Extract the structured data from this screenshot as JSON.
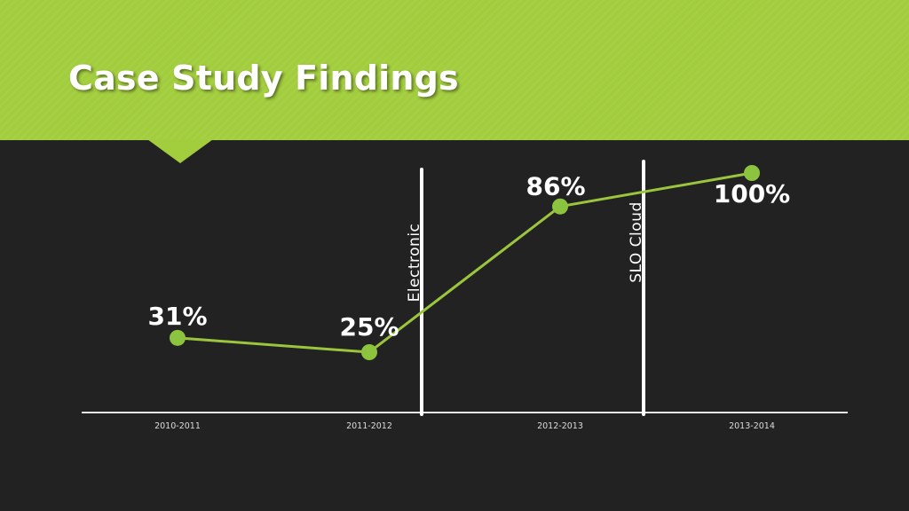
{
  "slide": {
    "title": "Case Study Findings"
  },
  "colors": {
    "header": "#a2cd3d",
    "background": "#222222",
    "line": "#9bc53d",
    "marker": "#8dc43f",
    "text": "#ffffff"
  },
  "chart_data": {
    "type": "line",
    "categories": [
      "2010-2011",
      "2011-2012",
      "2012-2013",
      "2013-2014"
    ],
    "values": [
      31,
      25,
      86,
      100
    ],
    "data_labels": [
      "31%",
      "25%",
      "86%",
      "100%"
    ],
    "ylim": [
      0,
      100
    ],
    "xlabel": "",
    "ylabel": "",
    "grid": false,
    "legend": "none",
    "annotations": [
      {
        "text": "Electronic",
        "between": [
          "2011-2012",
          "2012-2013"
        ],
        "position": 0.27
      },
      {
        "text": "SLO Cloud",
        "between": [
          "2012-2013",
          "2013-2014"
        ],
        "position": 0.44
      }
    ]
  }
}
